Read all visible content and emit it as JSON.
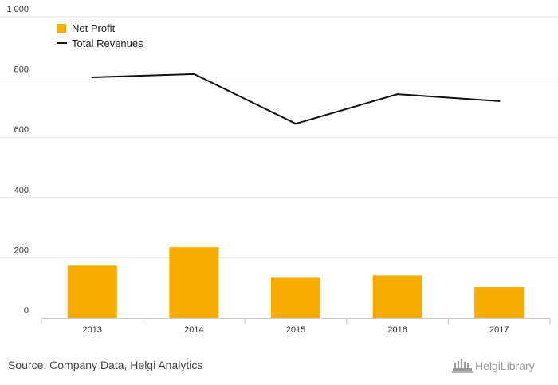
{
  "source_text": "Source: Company Data, Helgi Analytics",
  "logo": {
    "text": "HelgiLibrary",
    "icon": "library-building-icon"
  },
  "colors": {
    "bar": "#F7AC00",
    "line": "#111111",
    "grid": "#E6E6E6",
    "axis": "#CCCCCC"
  },
  "chart_data": {
    "type": "bar",
    "title": "",
    "xlabel": "",
    "ylabel": "",
    "ylim": [
      0,
      1000
    ],
    "yticks": [
      "0",
      "200",
      "400",
      "600",
      "800",
      "1 000"
    ],
    "categories": [
      "2013",
      "2014",
      "2015",
      "2016",
      "2017"
    ],
    "grid": true,
    "legend_position": "top-left",
    "series": [
      {
        "name": "Net Profit",
        "type": "bar",
        "values": [
          174,
          235,
          134,
          142,
          103
        ]
      },
      {
        "name": "Total Revenues",
        "type": "line",
        "values": [
          799,
          810,
          645,
          743,
          720
        ]
      }
    ]
  }
}
